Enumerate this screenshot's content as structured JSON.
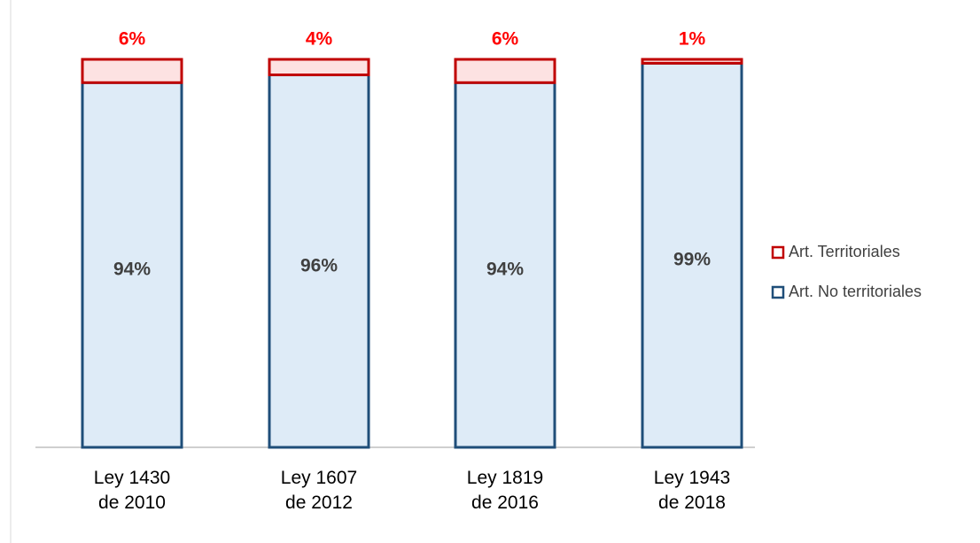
{
  "chart_data": {
    "type": "stacked_bar",
    "categories": [
      [
        "Ley 1430",
        "de 2010"
      ],
      [
        "Ley 1607",
        "de 2012"
      ],
      [
        "Ley 1819",
        "de 2016"
      ],
      [
        "Ley 1943",
        "de 2018"
      ]
    ],
    "series": [
      {
        "name": "Art. No territoriales",
        "color": "#1f4e79",
        "fill": "#deebf7",
        "values": [
          94,
          96,
          94,
          99
        ],
        "value_labels": [
          "94%",
          "96%",
          "94%",
          "99%"
        ],
        "label_color": "#404040"
      },
      {
        "name": "Art. Territoriales",
        "color": "#c00000",
        "fill": "#fde2e2",
        "values": [
          6,
          4,
          6,
          1
        ],
        "value_labels": [
          "6%",
          "4%",
          "6%",
          "1%"
        ],
        "label_color": "#ff0000"
      }
    ],
    "ylim": [
      0,
      100
    ],
    "legend": "right"
  }
}
